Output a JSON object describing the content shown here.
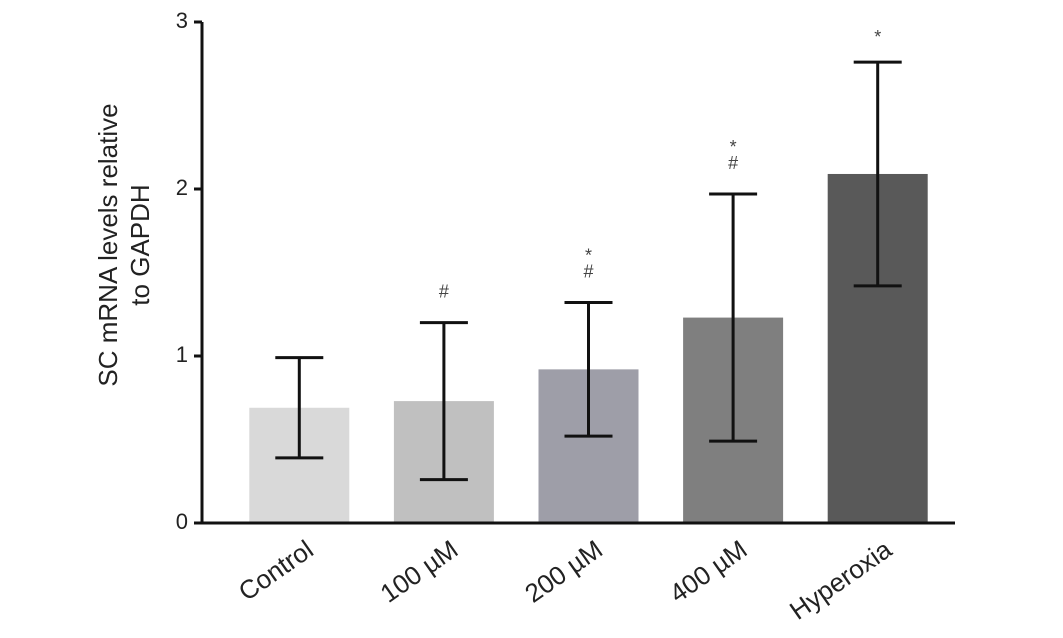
{
  "chart_data": {
    "type": "bar",
    "y_label": [
      "SC mRNA levels relative",
      "to GAPDH"
    ],
    "categories": [
      "Control",
      "100 µM",
      "200 µM",
      "400 µM",
      "Hyperoxia"
    ],
    "values": [
      0.69,
      0.73,
      0.92,
      1.23,
      2.09
    ],
    "errors": [
      0.3,
      0.47,
      0.4,
      0.74,
      0.67
    ],
    "colors": [
      "#d9d9d9",
      "#c0c0c0",
      "#9e9ea8",
      "#7f7f7f",
      "#595959"
    ],
    "annotations": [
      [],
      [
        "#"
      ],
      [
        "*",
        "#"
      ],
      [
        "*",
        "#"
      ],
      [
        "*"
      ]
    ],
    "ylim": [
      0,
      3
    ],
    "yticks": [
      0,
      1,
      2,
      3
    ],
    "grid": false
  }
}
